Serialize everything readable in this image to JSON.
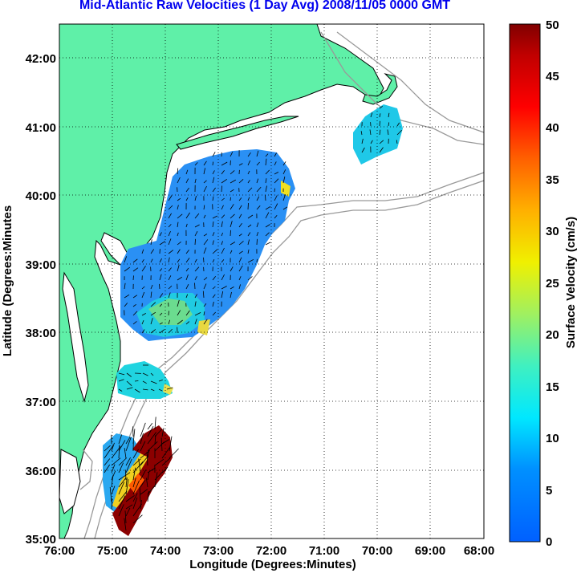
{
  "title": "Mid-Atlantic Raw Velocities (1 Day Avg) 2008/11/05 0000 GMT",
  "map": {
    "x_label": "Longitude (Degrees:Minutes)",
    "y_label": "Latitude (Degrees:Minutes",
    "x_ticks": [
      "76:00",
      "75:00",
      "74:00",
      "73:00",
      "72:00",
      "71:00",
      "70:00",
      "69:00",
      "68:00"
    ],
    "y_ticks": [
      "42:00",
      "41:00",
      "40:00",
      "39:00",
      "38:00",
      "37:00",
      "36:00",
      "35:00"
    ],
    "lon_range": [
      -76,
      -68
    ],
    "lat_range": [
      35,
      42.5
    ],
    "land_color": "#5ff0a8",
    "grid": "dotted"
  },
  "colorbar": {
    "label": "Surface Velocity (cm/s)",
    "ticks": [
      "0",
      "5",
      "10",
      "15",
      "20",
      "25",
      "30",
      "35",
      "40",
      "45",
      "50"
    ],
    "range": [
      0,
      50
    ],
    "colormap": "jet"
  }
}
